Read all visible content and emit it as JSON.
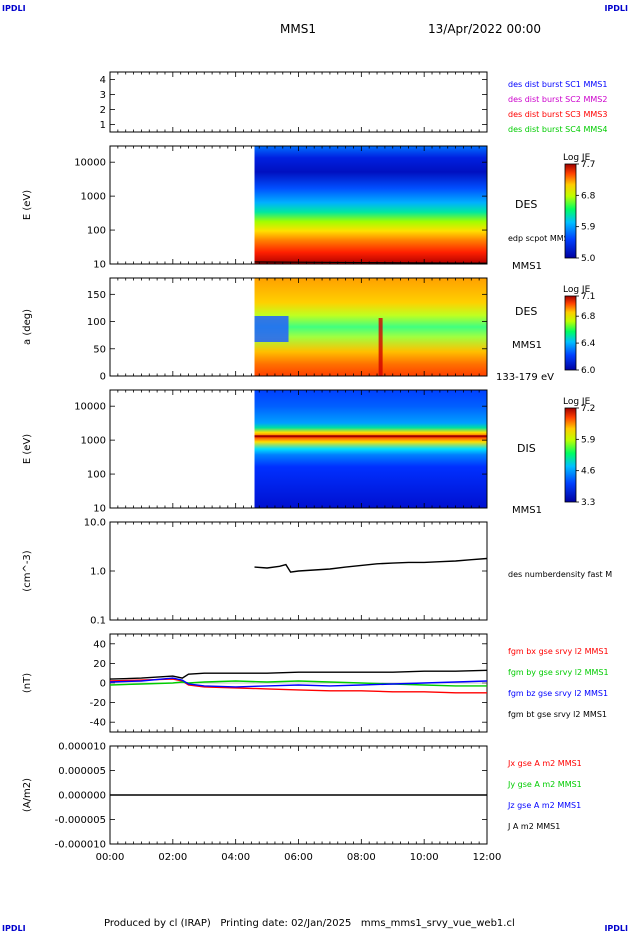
{
  "corner_label": "IPDLI",
  "header": {
    "title": "MMS1",
    "datetime": "13/Apr/2022 00:00"
  },
  "footer": "Produced by cl (IRAP)   Printing date: 02/Jan/2025   mms_mms1_srvy_vue_web1.cl",
  "colors": {
    "blue": "#0000ff",
    "magenta": "#cc00cc",
    "red": "#ff0000",
    "green": "#00cc00",
    "black": "#000000"
  },
  "chart_data": [
    {
      "type": "line",
      "name": "panel_burst",
      "ylim": [
        0.5,
        4.5
      ],
      "yticks": [
        "1",
        "2",
        "3",
        "4"
      ],
      "legend": [
        {
          "label": "des dist burst SC1 MMS1",
          "color": "#0000ff"
        },
        {
          "label": "des dist burst SC2 MMS2",
          "color": "#cc00cc"
        },
        {
          "label": "des dist burst SC3 MMS3",
          "color": "#ff0000"
        },
        {
          "label": "des dist burst SC4 MMS4",
          "color": "#00cc00"
        }
      ]
    },
    {
      "type": "heatmap",
      "name": "panel_des_energy",
      "ylabel": "E (eV)",
      "yscale": "log",
      "ylim": [
        10,
        30000
      ],
      "yticks": [
        "10",
        "100",
        "1000",
        "10000"
      ],
      "x_data_start_hour": 4.6,
      "side_label": "DES",
      "mission_label": "MMS1",
      "overlay_label": "edp scpot MMS1",
      "colorbar": {
        "title": "Log JE",
        "ticks": [
          "7.7",
          "6.8",
          "5.9",
          "5.0"
        ],
        "range": [
          5.0,
          7.7
        ]
      }
    },
    {
      "type": "heatmap",
      "name": "panel_des_pitch",
      "ylabel": "a (deg)",
      "ylim": [
        0,
        180
      ],
      "yticks": [
        "0",
        "50",
        "100",
        "150"
      ],
      "x_data_start_hour": 4.6,
      "side_label": "DES",
      "mission_label": "MMS1",
      "energy_label": "133-179 eV",
      "colorbar": {
        "title": "Log JE",
        "ticks": [
          "7.1",
          "6.8",
          "6.4",
          "6.0"
        ],
        "range": [
          6.0,
          7.1
        ]
      }
    },
    {
      "type": "heatmap",
      "name": "panel_dis_energy",
      "ylabel": "E (eV)",
      "yscale": "log",
      "ylim": [
        10,
        30000
      ],
      "yticks": [
        "10",
        "100",
        "1000",
        "10000"
      ],
      "x_data_start_hour": 4.6,
      "side_label": "DIS",
      "mission_label": "MMS1",
      "colorbar": {
        "title": "Log JE",
        "ticks": [
          "7.2",
          "5.9",
          "4.6",
          "3.3"
        ],
        "range": [
          3.3,
          7.2
        ]
      }
    },
    {
      "type": "line",
      "name": "panel_density",
      "ylabel": "(cm^-3)",
      "yscale": "log",
      "ylim": [
        0.1,
        10.0
      ],
      "yticks": [
        "10.0",
        "1.0",
        "0.1"
      ],
      "legend": [
        {
          "label": "des numberdensity fast M",
          "color": "#000000"
        }
      ],
      "series": [
        {
          "name": "des numberdensity fast M",
          "x": [
            4.6,
            5.0,
            5.4,
            5.6,
            5.75,
            6.0,
            6.5,
            7.0,
            7.5,
            8.0,
            8.5,
            9.0,
            9.5,
            10.0,
            10.5,
            11.0,
            11.5,
            12.0
          ],
          "values": [
            1.2,
            1.15,
            1.25,
            1.35,
            0.95,
            1.0,
            1.05,
            1.1,
            1.2,
            1.3,
            1.4,
            1.45,
            1.5,
            1.5,
            1.55,
            1.6,
            1.7,
            1.8
          ]
        }
      ]
    },
    {
      "type": "line",
      "name": "panel_fgm",
      "ylabel": "(nT)",
      "ylim": [
        -50,
        50
      ],
      "yticks": [
        "40",
        "20",
        "0",
        "-20",
        "-40"
      ],
      "legend": [
        {
          "label": "fgm bx gse srvy l2 MMS1",
          "color": "#ff0000"
        },
        {
          "label": "fgm by gse srvy l2 MMS1",
          "color": "#00cc00"
        },
        {
          "label": "fgm bz gse srvy l2 MMS1",
          "color": "#0000ff"
        },
        {
          "label": "fgm bt gse srvy l2 MMS1",
          "color": "#000000"
        }
      ],
      "series": [
        {
          "name": "fgm bx gse srvy l2 MMS1",
          "color": "#ff0000",
          "x": [
            0,
            1,
            2,
            2.3,
            2.5,
            3,
            4,
            5,
            6,
            7,
            8,
            9,
            10,
            11,
            12
          ],
          "values": [
            2,
            3,
            4,
            2,
            -2,
            -4,
            -5,
            -6,
            -7,
            -8,
            -8,
            -9,
            -9,
            -10,
            -10
          ]
        },
        {
          "name": "fgm by gse srvy l2 MMS1",
          "color": "#00cc00",
          "x": [
            0,
            1,
            2,
            2.3,
            2.5,
            3,
            4,
            5,
            6,
            7,
            8,
            9,
            10,
            11,
            12
          ],
          "values": [
            -2,
            -1,
            0,
            1,
            0,
            1,
            2,
            1,
            2,
            1,
            0,
            -1,
            -2,
            -3,
            -3
          ]
        },
        {
          "name": "fgm bz gse srvy l2 MMS1",
          "color": "#0000ff",
          "x": [
            0,
            1,
            2,
            2.3,
            2.5,
            3,
            4,
            5,
            6,
            7,
            8,
            9,
            10,
            11,
            12
          ],
          "values": [
            1,
            2,
            5,
            3,
            -1,
            -3,
            -4,
            -3,
            -2,
            -3,
            -2,
            -1,
            0,
            1,
            2
          ]
        },
        {
          "name": "fgm bt gse srvy l2 MMS1",
          "color": "#000000",
          "x": [
            0,
            1,
            2,
            2.3,
            2.5,
            3,
            4,
            5,
            6,
            7,
            8,
            9,
            10,
            11,
            12
          ],
          "values": [
            4,
            5,
            7,
            5,
            9,
            10,
            10,
            10,
            11,
            11,
            11,
            11,
            12,
            12,
            13
          ]
        }
      ]
    },
    {
      "type": "line",
      "name": "panel_current",
      "ylabel": "(A/m2)",
      "ylim": [
        -1e-05,
        1e-05
      ],
      "yticks": [
        "0.000010",
        "0.000005",
        "0.000000",
        "-0.000005",
        "-0.000010"
      ],
      "legend": [
        {
          "label": "Jx gse A m2 MMS1",
          "color": "#ff0000"
        },
        {
          "label": "Jy gse A m2 MMS1",
          "color": "#00cc00"
        },
        {
          "label": "Jz gse A m2 MMS1",
          "color": "#0000ff"
        },
        {
          "label": "J A m2 MMS1",
          "color": "#000000"
        }
      ],
      "series": [
        {
          "name": "J A m2 MMS1",
          "color": "#000000",
          "x": [
            0,
            12
          ],
          "values": [
            0,
            0
          ]
        }
      ]
    }
  ],
  "xaxis": {
    "xlim": [
      0,
      12
    ],
    "ticks": [
      "00:00",
      "02:00",
      "04:00",
      "06:00",
      "08:00",
      "10:00",
      "12:00"
    ]
  }
}
